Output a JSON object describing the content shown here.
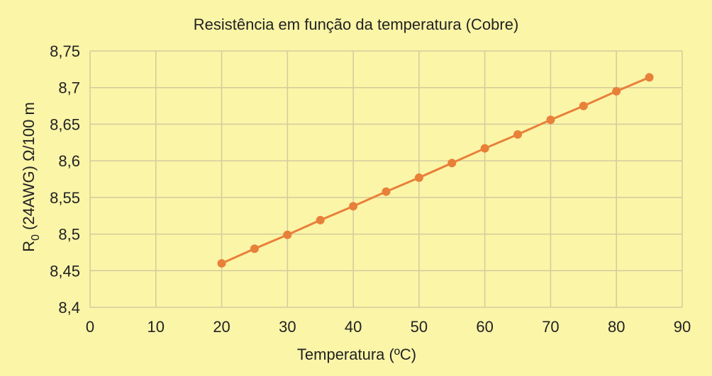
{
  "chart_data": {
    "type": "line",
    "title": "Resistência em função da temperatura (Cobre)",
    "xlabel": "Temperatura (ºC)",
    "ylabel_main": "R",
    "ylabel_sub": "0",
    "ylabel_rest": " (24AWG) Ω/100 m",
    "xlim": [
      0,
      90
    ],
    "ylim": [
      8.4,
      8.75
    ],
    "x_ticks": [
      0,
      10,
      20,
      30,
      40,
      50,
      60,
      70,
      80,
      90
    ],
    "x_tick_labels": [
      "0",
      "10",
      "20",
      "30",
      "40",
      "50",
      "60",
      "70",
      "80",
      "90"
    ],
    "y_ticks": [
      8.4,
      8.45,
      8.5,
      8.55,
      8.6,
      8.65,
      8.7,
      8.75
    ],
    "y_tick_labels": [
      "8,4",
      "8,45",
      "8,5",
      "8,55",
      "8,6",
      "8,65",
      "8,7",
      "8,75"
    ],
    "grid": true,
    "colors": {
      "background": "#fbf5a8",
      "grid": "#d3cb9b",
      "series": "#e8803a"
    },
    "series": [
      {
        "x": [
          20,
          25,
          30,
          35,
          40,
          45,
          50,
          55,
          60,
          65,
          70,
          75,
          80,
          85
        ],
        "values": [
          8.46,
          8.48,
          8.499,
          8.519,
          8.538,
          8.558,
          8.577,
          8.597,
          8.617,
          8.636,
          8.656,
          8.675,
          8.695,
          8.714
        ]
      }
    ]
  }
}
